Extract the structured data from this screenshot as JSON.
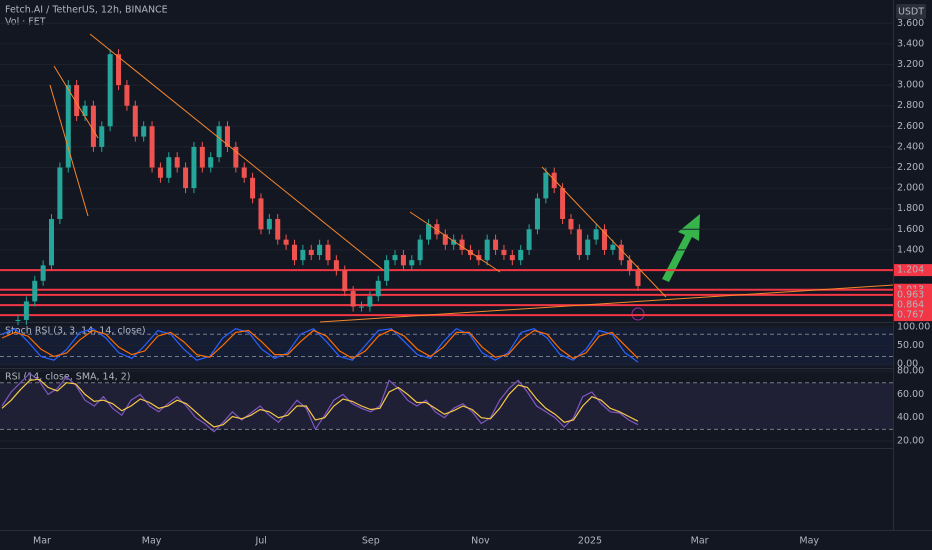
{
  "header": {
    "symbol": "Fetch.AI / TetherUS, 12h, BINANCE",
    "volume": "Vol · FET",
    "currency": "USDT"
  },
  "x_axis_labels": [
    "Mar",
    "May",
    "Jul",
    "Sep",
    "Nov",
    "2025",
    "Mar",
    "May"
  ],
  "chart_data": [
    {
      "type": "candlestick",
      "up_color": "#26a69a",
      "down_color": "#ef5350",
      "values": [
        0.72,
        0.9,
        1.1,
        1.25,
        1.7,
        2.2,
        3.0,
        2.7,
        2.8,
        2.4,
        2.6,
        3.3,
        3.0,
        2.8,
        2.5,
        2.6,
        2.2,
        2.1,
        2.3,
        2.2,
        2.0,
        2.4,
        2.2,
        2.3,
        2.6,
        2.4,
        2.2,
        2.1,
        1.9,
        1.6,
        1.7,
        1.5,
        1.45,
        1.3,
        1.4,
        1.35,
        1.45,
        1.3,
        1.2,
        1.0,
        0.85,
        0.85,
        0.95,
        1.1,
        1.3,
        1.35,
        1.25,
        1.3,
        1.5,
        1.65,
        1.55,
        1.45,
        1.5,
        1.4,
        1.35,
        1.3,
        1.5,
        1.4,
        1.35,
        1.3,
        1.4,
        1.6,
        1.9,
        2.15,
        2.0,
        1.7,
        1.6,
        1.35,
        1.5,
        1.6,
        1.4,
        1.45,
        1.3,
        1.2,
        1.05
      ],
      "levels": [
        1.204,
        1.013,
        0.963,
        0.864,
        0.767
      ],
      "level_color": "#f23645",
      "ylim": [
        0.7,
        3.7
      ],
      "yticks": [
        {
          "value": 1.4,
          "label": "1.400"
        },
        {
          "value": 1.6,
          "label": "1.600"
        },
        {
          "value": 1.8,
          "label": "1.800"
        },
        {
          "value": 2.0,
          "label": "2.000"
        },
        {
          "value": 2.2,
          "label": "2.200"
        },
        {
          "value": 2.4,
          "label": "2.400"
        },
        {
          "value": 2.6,
          "label": "2.600"
        },
        {
          "value": 2.8,
          "label": "2.800"
        },
        {
          "value": 3.0,
          "label": "3.000"
        },
        {
          "value": 3.2,
          "label": "3.200"
        },
        {
          "value": 3.4,
          "label": "3.400"
        },
        {
          "value": 3.6,
          "label": "3.600"
        }
      ]
    },
    {
      "type": "line",
      "title": "Stoch RSI (3, 3, 14, 14, close)",
      "ylim": [
        -11,
        113
      ],
      "band": [
        20,
        80
      ],
      "yticks": [
        {
          "value": 0,
          "label": "0.00"
        },
        {
          "value": 50,
          "label": "50.00"
        },
        {
          "value": 100,
          "label": "100.00"
        }
      ],
      "series": [
        {
          "color": "#2962ff",
          "values": [
            80,
            95,
            60,
            20,
            10,
            40,
            85,
            95,
            70,
            30,
            15,
            50,
            90,
            80,
            40,
            10,
            20,
            70,
            95,
            85,
            40,
            15,
            30,
            80,
            95,
            60,
            20,
            10,
            50,
            90,
            95,
            60,
            25,
            15,
            60,
            95,
            80,
            30,
            10,
            30,
            85,
            95,
            70,
            25,
            10,
            40,
            90,
            80,
            30,
            5
          ]
        },
        {
          "color": "#ff6d00",
          "values": [
            70,
            85,
            75,
            40,
            20,
            30,
            65,
            90,
            80,
            45,
            25,
            35,
            75,
            85,
            60,
            25,
            18,
            50,
            85,
            90,
            60,
            25,
            25,
            60,
            90,
            75,
            35,
            15,
            35,
            75,
            92,
            75,
            40,
            20,
            45,
            85,
            85,
            45,
            18,
            25,
            65,
            90,
            80,
            40,
            15,
            30,
            75,
            85,
            50,
            15
          ]
        }
      ]
    },
    {
      "type": "line",
      "title": "RSI (14, close, SMA, 14, 2)",
      "ylim": [
        14,
        82.6
      ],
      "band": [
        30,
        70
      ],
      "yticks": [
        {
          "value": 20,
          "label": "20.00"
        },
        {
          "value": 40,
          "label": "40.00"
        },
        {
          "value": 60,
          "label": "60.00"
        },
        {
          "value": 80,
          "label": "80.00"
        }
      ],
      "series": [
        {
          "color": "#7e57c2",
          "values": [
            50,
            62,
            70,
            78,
            72,
            60,
            65,
            75,
            68,
            55,
            50,
            58,
            48,
            42,
            55,
            60,
            50,
            45,
            52,
            58,
            50,
            40,
            35,
            28,
            36,
            45,
            38,
            44,
            50,
            42,
            36,
            45,
            55,
            48,
            30,
            42,
            55,
            60,
            52,
            48,
            45,
            50,
            72,
            65,
            55,
            50,
            55,
            45,
            40,
            48,
            52,
            45,
            35,
            40,
            55,
            65,
            72,
            62,
            50,
            45,
            40,
            32,
            40,
            58,
            62,
            52,
            45,
            44,
            38,
            34
          ]
        },
        {
          "color": "#f7c948",
          "values": [
            48,
            55,
            64,
            72,
            73,
            66,
            63,
            70,
            69,
            60,
            54,
            55,
            52,
            46,
            50,
            56,
            53,
            48,
            50,
            55,
            52,
            45,
            38,
            32,
            34,
            41,
            39,
            42,
            47,
            45,
            40,
            42,
            50,
            50,
            38,
            40,
            50,
            56,
            54,
            50,
            47,
            48,
            62,
            66,
            60,
            53,
            53,
            48,
            43,
            46,
            50,
            47,
            40,
            39,
            48,
            60,
            68,
            66,
            56,
            48,
            43,
            36,
            38,
            50,
            58,
            55,
            48,
            45,
            41,
            37
          ]
        }
      ]
    }
  ]
}
